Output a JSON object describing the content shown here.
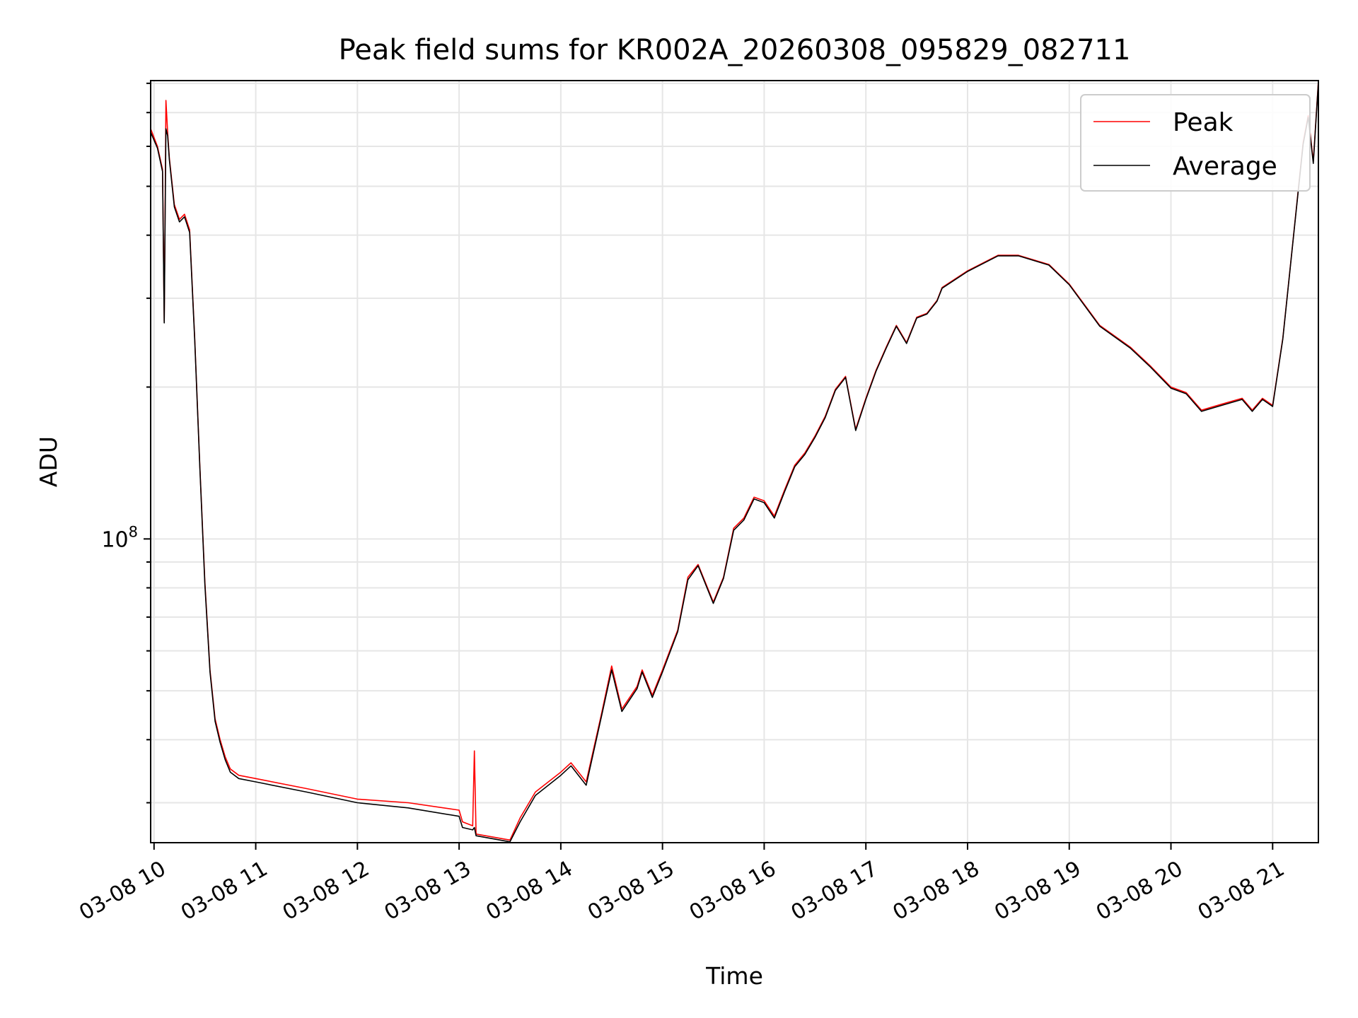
{
  "chart_data": {
    "type": "line",
    "title": "Peak field sums for KR002A_20260308_095829_082711",
    "xlabel": "Time",
    "ylabel": "ADU",
    "yscale": "log",
    "grid": true,
    "legend_position": "top-right",
    "xlim": [
      "2026-03-08 09:58",
      "2026-03-08 21:27"
    ],
    "ylim": [
      25000000,
      810000000
    ],
    "x_ticks": [
      "03-08 10",
      "03-08 11",
      "03-08 12",
      "03-08 13",
      "03-08 14",
      "03-08 15",
      "03-08 16",
      "03-08 17",
      "03-08 18",
      "03-08 19",
      "03-08 20",
      "03-08 21"
    ],
    "y_major_tick": {
      "value": 100000000,
      "base": "10",
      "exponent": "8"
    },
    "series": [
      {
        "name": "Peak",
        "color": "#ff0000",
        "x": [
          "2026-03-08 09:58",
          "2026-03-08 10:02",
          "2026-03-08 10:05",
          "2026-03-08 10:06",
          "2026-03-08 10:07",
          "2026-03-08 10:08",
          "2026-03-08 10:09",
          "2026-03-08 10:12",
          "2026-03-08 10:15",
          "2026-03-08 10:18",
          "2026-03-08 10:21",
          "2026-03-08 10:24",
          "2026-03-08 10:27",
          "2026-03-08 10:30",
          "2026-03-08 10:33",
          "2026-03-08 10:36",
          "2026-03-08 10:39",
          "2026-03-08 10:42",
          "2026-03-08 10:45",
          "2026-03-08 10:50",
          "2026-03-08 11:00",
          "2026-03-08 11:30",
          "2026-03-08 12:00",
          "2026-03-08 12:30",
          "2026-03-08 13:00",
          "2026-03-08 13:02",
          "2026-03-08 13:08",
          "2026-03-08 13:09",
          "2026-03-08 13:10",
          "2026-03-08 13:30",
          "2026-03-08 13:36",
          "2026-03-08 13:45",
          "2026-03-08 14:00",
          "2026-03-08 14:06",
          "2026-03-08 14:15",
          "2026-03-08 14:24",
          "2026-03-08 14:30",
          "2026-03-08 14:36",
          "2026-03-08 14:45",
          "2026-03-08 14:48",
          "2026-03-08 14:54",
          "2026-03-08 15:00",
          "2026-03-08 15:09",
          "2026-03-08 15:15",
          "2026-03-08 15:21",
          "2026-03-08 15:30",
          "2026-03-08 15:36",
          "2026-03-08 15:42",
          "2026-03-08 15:48",
          "2026-03-08 15:54",
          "2026-03-08 16:00",
          "2026-03-08 16:06",
          "2026-03-08 16:12",
          "2026-03-08 16:18",
          "2026-03-08 16:24",
          "2026-03-08 16:30",
          "2026-03-08 16:36",
          "2026-03-08 16:42",
          "2026-03-08 16:48",
          "2026-03-08 16:54",
          "2026-03-08 17:00",
          "2026-03-08 17:06",
          "2026-03-08 17:12",
          "2026-03-08 17:18",
          "2026-03-08 17:24",
          "2026-03-08 17:30",
          "2026-03-08 17:36",
          "2026-03-08 17:42",
          "2026-03-08 17:45",
          "2026-03-08 18:00",
          "2026-03-08 18:18",
          "2026-03-08 18:30",
          "2026-03-08 18:48",
          "2026-03-08 19:00",
          "2026-03-08 19:18",
          "2026-03-08 19:36",
          "2026-03-08 19:48",
          "2026-03-08 20:00",
          "2026-03-08 20:09",
          "2026-03-08 20:18",
          "2026-03-08 20:30",
          "2026-03-08 20:42",
          "2026-03-08 20:48",
          "2026-03-08 20:54",
          "2026-03-08 21:00",
          "2026-03-08 21:06",
          "2026-03-08 21:12",
          "2026-03-08 21:18",
          "2026-03-08 21:21",
          "2026-03-08 21:24",
          "2026-03-08 21:27"
        ],
        "values": [
          650000000,
          600000000,
          540000000,
          270000000,
          740000000,
          640000000,
          570000000,
          460000000,
          430000000,
          440000000,
          410000000,
          250000000,
          140000000,
          82000000,
          55000000,
          44000000,
          40000000,
          37000000,
          35000000,
          34000000,
          33500000,
          32000000,
          30500000,
          30000000,
          29000000,
          27500000,
          27000000,
          38000000,
          26000000,
          25300000,
          28000000,
          31500000,
          34500000,
          36000000,
          33000000,
          45000000,
          56000000,
          46000000,
          51000000,
          55000000,
          49000000,
          55000000,
          66000000,
          84000000,
          89000000,
          75000000,
          84000000,
          105000000,
          110000000,
          121000000,
          119000000,
          111000000,
          125000000,
          140000000,
          148000000,
          160000000,
          175000000,
          198000000,
          210000000,
          165000000,
          190000000,
          216000000,
          240000000,
          265000000,
          245000000,
          275000000,
          280000000,
          297000000,
          315000000,
          340000000,
          365000000,
          365000000,
          350000000,
          320000000,
          265000000,
          240000000,
          220000000,
          200000000,
          195000000,
          180000000,
          185000000,
          190000000,
          180000000,
          190000000,
          184000000,
          250000000,
          390000000,
          610000000,
          690000000,
          560000000,
          810000000
        ]
      },
      {
        "name": "Average",
        "color": "#000000",
        "x": [
          "2026-03-08 09:58",
          "2026-03-08 10:02",
          "2026-03-08 10:05",
          "2026-03-08 10:06",
          "2026-03-08 10:07",
          "2026-03-08 10:08",
          "2026-03-08 10:09",
          "2026-03-08 10:12",
          "2026-03-08 10:15",
          "2026-03-08 10:18",
          "2026-03-08 10:21",
          "2026-03-08 10:24",
          "2026-03-08 10:27",
          "2026-03-08 10:30",
          "2026-03-08 10:33",
          "2026-03-08 10:36",
          "2026-03-08 10:39",
          "2026-03-08 10:42",
          "2026-03-08 10:45",
          "2026-03-08 10:50",
          "2026-03-08 11:00",
          "2026-03-08 11:30",
          "2026-03-08 12:00",
          "2026-03-08 12:30",
          "2026-03-08 13:00",
          "2026-03-08 13:02",
          "2026-03-08 13:08",
          "2026-03-08 13:09",
          "2026-03-08 13:10",
          "2026-03-08 13:30",
          "2026-03-08 13:36",
          "2026-03-08 13:45",
          "2026-03-08 14:00",
          "2026-03-08 14:06",
          "2026-03-08 14:15",
          "2026-03-08 14:24",
          "2026-03-08 14:30",
          "2026-03-08 14:36",
          "2026-03-08 14:45",
          "2026-03-08 14:48",
          "2026-03-08 14:54",
          "2026-03-08 15:00",
          "2026-03-08 15:09",
          "2026-03-08 15:15",
          "2026-03-08 15:21",
          "2026-03-08 15:30",
          "2026-03-08 15:36",
          "2026-03-08 15:42",
          "2026-03-08 15:48",
          "2026-03-08 15:54",
          "2026-03-08 16:00",
          "2026-03-08 16:06",
          "2026-03-08 16:12",
          "2026-03-08 16:18",
          "2026-03-08 16:24",
          "2026-03-08 16:30",
          "2026-03-08 16:36",
          "2026-03-08 16:42",
          "2026-03-08 16:48",
          "2026-03-08 16:54",
          "2026-03-08 17:00",
          "2026-03-08 17:06",
          "2026-03-08 17:12",
          "2026-03-08 17:18",
          "2026-03-08 17:24",
          "2026-03-08 17:30",
          "2026-03-08 17:36",
          "2026-03-08 17:42",
          "2026-03-08 17:45",
          "2026-03-08 18:00",
          "2026-03-08 18:18",
          "2026-03-08 18:30",
          "2026-03-08 18:48",
          "2026-03-08 19:00",
          "2026-03-08 19:18",
          "2026-03-08 19:36",
          "2026-03-08 19:48",
          "2026-03-08 20:00",
          "2026-03-08 20:09",
          "2026-03-08 20:18",
          "2026-03-08 20:30",
          "2026-03-08 20:42",
          "2026-03-08 20:48",
          "2026-03-08 20:54",
          "2026-03-08 21:00",
          "2026-03-08 21:06",
          "2026-03-08 21:12",
          "2026-03-08 21:18",
          "2026-03-08 21:21",
          "2026-03-08 21:24",
          "2026-03-08 21:27"
        ],
        "values": [
          640000000,
          595000000,
          535000000,
          268000000,
          650000000,
          630000000,
          565000000,
          455000000,
          425000000,
          435000000,
          405000000,
          248000000,
          139000000,
          81000000,
          54500000,
          43500000,
          39500000,
          36500000,
          34500000,
          33500000,
          33000000,
          31500000,
          30000000,
          29300000,
          28200000,
          26800000,
          26500000,
          26800000,
          25800000,
          25100000,
          27500000,
          31000000,
          34000000,
          35500000,
          32500000,
          44500000,
          55000000,
          45500000,
          50500000,
          54500000,
          48500000,
          54500000,
          65500000,
          83000000,
          88500000,
          74500000,
          83500000,
          104000000,
          109000000,
          120000000,
          118000000,
          110000000,
          124000000,
          139000000,
          147000000,
          159000000,
          174000000,
          197000000,
          209000000,
          164000000,
          189000000,
          215000000,
          239000000,
          264000000,
          244000000,
          274000000,
          279000000,
          296000000,
          314000000,
          339000000,
          364000000,
          364000000,
          349000000,
          319000000,
          264000000,
          239000000,
          219000000,
          199000000,
          194000000,
          179000000,
          184000000,
          189000000,
          179000000,
          189000000,
          183000000,
          249000000,
          389000000,
          605000000,
          685000000,
          555000000,
          805000000
        ]
      }
    ]
  }
}
